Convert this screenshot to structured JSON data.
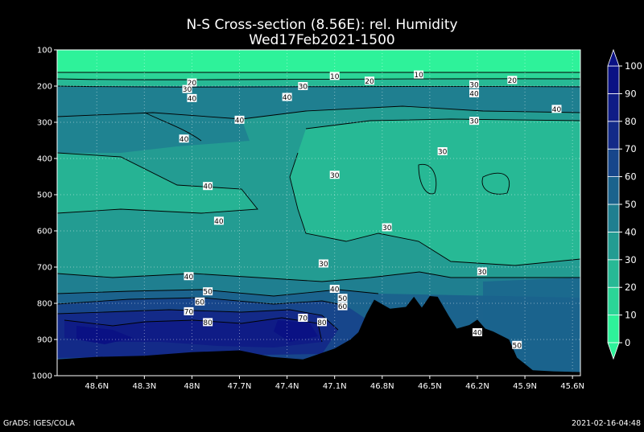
{
  "chart_data": {
    "type": "contour",
    "title": "N-S Cross-section (8.56E): rel. Humidity",
    "subtitle": "Wed17Feb2021-1500",
    "y_axis": {
      "unit": "hPa",
      "ticks": [
        100,
        200,
        300,
        400,
        500,
        600,
        700,
        800,
        900,
        1000
      ],
      "range": [
        100,
        1000
      ],
      "inverted": true,
      "grid": true
    },
    "x_axis": {
      "ticks": [
        "48.6N",
        "48.3N",
        "48N",
        "47.7N",
        "47.4N",
        "47.1N",
        "46.8N",
        "46.5N",
        "46.2N",
        "45.9N",
        "45.6N"
      ],
      "grid": true
    },
    "colorbar": {
      "ticks": [
        0,
        10,
        20,
        30,
        40,
        50,
        60,
        70,
        80,
        90,
        100
      ],
      "colors": [
        "#2ef29a",
        "#2bd597",
        "#27b995",
        "#239c92",
        "#1f7f90",
        "#1b638d",
        "#17468b",
        "#132a88",
        "#0f1c86",
        "#0a1184"
      ]
    },
    "contour_labels": [
      {
        "text": "10",
        "lat": 47.1,
        "p": 172
      },
      {
        "text": "10",
        "lat": 46.57,
        "p": 168
      },
      {
        "text": "20",
        "lat": 48.0,
        "p": 190
      },
      {
        "text": "20",
        "lat": 46.88,
        "p": 185
      },
      {
        "text": "20",
        "lat": 45.98,
        "p": 183
      },
      {
        "text": "30",
        "lat": 48.03,
        "p": 208
      },
      {
        "text": "30",
        "lat": 47.3,
        "p": 200
      },
      {
        "text": "30",
        "lat": 46.22,
        "p": 195
      },
      {
        "text": "40",
        "lat": 48.0,
        "p": 233
      },
      {
        "text": "40",
        "lat": 47.4,
        "p": 230
      },
      {
        "text": "40",
        "lat": 46.22,
        "p": 220
      },
      {
        "text": "40",
        "lat": 45.7,
        "p": 263
      },
      {
        "text": "40",
        "lat": 47.7,
        "p": 293
      },
      {
        "text": "30",
        "lat": 46.22,
        "p": 296
      },
      {
        "text": "40",
        "lat": 48.05,
        "p": 345
      },
      {
        "text": "30",
        "lat": 46.42,
        "p": 380
      },
      {
        "text": "30",
        "lat": 47.1,
        "p": 445
      },
      {
        "text": "40",
        "lat": 47.9,
        "p": 476
      },
      {
        "text": "40",
        "lat": 47.83,
        "p": 572
      },
      {
        "text": "30",
        "lat": 46.77,
        "p": 590
      },
      {
        "text": "30",
        "lat": 47.17,
        "p": 690
      },
      {
        "text": "30",
        "lat": 46.17,
        "p": 712
      },
      {
        "text": "40",
        "lat": 48.02,
        "p": 725
      },
      {
        "text": "40",
        "lat": 47.1,
        "p": 760
      },
      {
        "text": "50",
        "lat": 47.9,
        "p": 767
      },
      {
        "text": "50",
        "lat": 47.05,
        "p": 785
      },
      {
        "text": "60",
        "lat": 47.95,
        "p": 795
      },
      {
        "text": "60",
        "lat": 47.05,
        "p": 808
      },
      {
        "text": "70",
        "lat": 48.02,
        "p": 822
      },
      {
        "text": "70",
        "lat": 47.3,
        "p": 840
      },
      {
        "text": "80",
        "lat": 47.9,
        "p": 852
      },
      {
        "text": "80",
        "lat": 47.18,
        "p": 852
      },
      {
        "text": "40",
        "lat": 46.2,
        "p": 880
      },
      {
        "text": "50",
        "lat": 45.95,
        "p": 915
      }
    ],
    "terrain": [
      [
        48.85,
        955
      ],
      [
        48.6,
        948
      ],
      [
        48.3,
        945
      ],
      [
        48.0,
        935
      ],
      [
        47.7,
        930
      ],
      [
        47.5,
        948
      ],
      [
        47.3,
        955
      ],
      [
        47.1,
        925
      ],
      [
        47.0,
        900
      ],
      [
        46.95,
        880
      ],
      [
        46.9,
        830
      ],
      [
        46.85,
        790
      ],
      [
        46.75,
        815
      ],
      [
        46.65,
        810
      ],
      [
        46.6,
        782
      ],
      [
        46.55,
        812
      ],
      [
        46.5,
        780
      ],
      [
        46.45,
        782
      ],
      [
        46.38,
        835
      ],
      [
        46.33,
        870
      ],
      [
        46.25,
        860
      ],
      [
        46.2,
        845
      ],
      [
        46.15,
        870
      ],
      [
        46.1,
        878
      ],
      [
        46.0,
        900
      ],
      [
        45.95,
        950
      ],
      [
        45.85,
        985
      ],
      [
        45.72,
        988
      ],
      [
        45.55,
        990
      ]
    ]
  },
  "footer": {
    "left": "GrADS: IGES/COLA",
    "right": "2021-02-16-04:48"
  }
}
